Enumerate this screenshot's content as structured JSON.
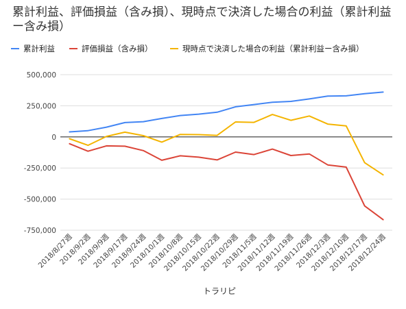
{
  "chart_data": {
    "type": "line",
    "title": "累計利益、評価損益（含み損）、現時点で決済した場合の利益（累計利益ー含み損）",
    "xlabel": "トラリピ",
    "ylabel": "",
    "ylim": [
      -750000,
      500000
    ],
    "yticks": [
      500000,
      250000,
      0,
      -250000,
      -500000,
      -750000
    ],
    "ytick_labels": [
      "500,000",
      "250,000",
      "0",
      "-250,000",
      "-500,000",
      "-750,000"
    ],
    "grid": true,
    "legend_position": "top",
    "categories": [
      "2018/8/27週",
      "2018/9/2週",
      "2018/9/9週",
      "2018/9/17週",
      "2018/9/24週",
      "2018/10/1週",
      "2018/10/8週",
      "2018/10/15週",
      "2018/10/22週",
      "2018/10/29週",
      "2018/11/5週",
      "2018/11/12週",
      "2018/11/19週",
      "2018/11/26週",
      "2018/12/3週",
      "2018/12/10週",
      "2018/12/17週",
      "2018/12/24週"
    ],
    "x_label_categories": [
      "2018/8/27週",
      "2018/9/2週",
      "2018/9/9週",
      "2018/9/17週",
      "2018/9/24週",
      "2018/10/1週",
      "2018/10/8週",
      "2018/10/15週",
      "2018/10/22週",
      "2018/10/29週",
      "2018/11/5週",
      "2018/11/12週",
      "2018/11/19週",
      "2018/11/26週",
      "2018/12/3週",
      "2018/12/10週",
      "2018/12/17週",
      "2018/12/24週"
    ],
    "series": [
      {
        "name": "累計利益",
        "color": "#4285f4",
        "values": [
          40000,
          50000,
          78000,
          115000,
          122000,
          148000,
          172000,
          183000,
          198000,
          242000,
          260000,
          278000,
          285000,
          305000,
          328000,
          330000,
          347000,
          360000
        ]
      },
      {
        "name": "評価損益（含み損）",
        "color": "#db4437",
        "values": [
          -55000,
          -115000,
          -72000,
          -75000,
          -110000,
          -188000,
          -152000,
          -163000,
          -185000,
          -122000,
          -142000,
          -98000,
          -150000,
          -137000,
          -225000,
          -243000,
          -555000,
          -665000
        ]
      },
      {
        "name": "現時点で決済した場合の利益（累計利益ー含み損）",
        "color": "#f4b400",
        "values": [
          -15000,
          -68000,
          4000,
          38000,
          10000,
          -42000,
          20000,
          18000,
          12000,
          120000,
          117000,
          180000,
          133000,
          168000,
          103000,
          88000,
          -207000,
          -305000
        ]
      }
    ]
  }
}
